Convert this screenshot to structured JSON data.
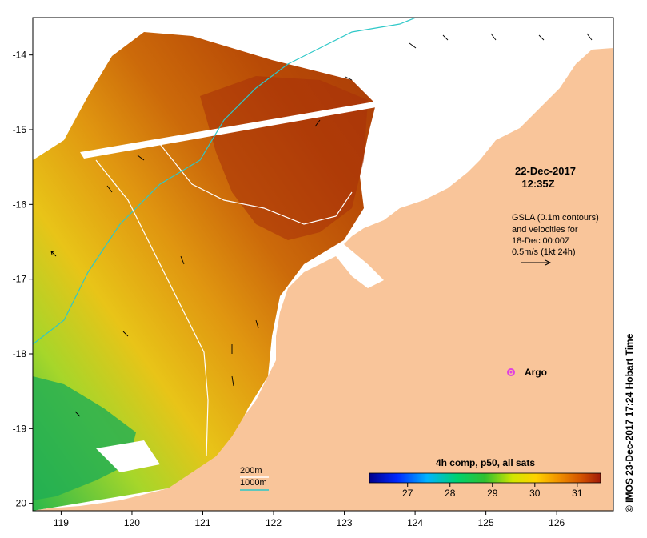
{
  "colors": {
    "land": "#f9c59a",
    "ocean_bg": "#ffffff",
    "contour_200m": "#ffffff",
    "contour_1000m": "#2ec8c8",
    "argo_marker": "#e040e0",
    "frame": "#000000"
  },
  "map": {
    "lon_range": [
      118.6,
      126.8
    ],
    "lat_range": [
      -20.1,
      -13.5
    ],
    "x_ticks": [
      119,
      120,
      121,
      122,
      123,
      124,
      125,
      126
    ],
    "y_ticks": [
      -14,
      -15,
      -16,
      -17,
      -18,
      -19,
      -20
    ]
  },
  "annotations": {
    "date": "22-Dec-2017",
    "time": "12:35Z",
    "gsla_line1": "GSLA (0.1m contours)",
    "gsla_line2": "and velocities for",
    "gsla_line3": "18-Dec 00:00Z",
    "gsla_line4": "0.5m/s (1kt 24h)",
    "argo_label": "Argo",
    "argo_icon": "magenta-star-icon"
  },
  "legend": {
    "contour_200m": "200m",
    "contour_1000m": "1000m"
  },
  "colorbar": {
    "title": "4h comp, p50, all sats",
    "ticks": [
      "27",
      "28",
      "29",
      "30",
      "31"
    ],
    "tick_values": [
      27,
      28,
      29,
      30,
      31
    ],
    "range": [
      26.1,
      31.55
    ]
  },
  "credit": "© IMOS 23-Dec-2017 17:24 Hobart Time"
}
